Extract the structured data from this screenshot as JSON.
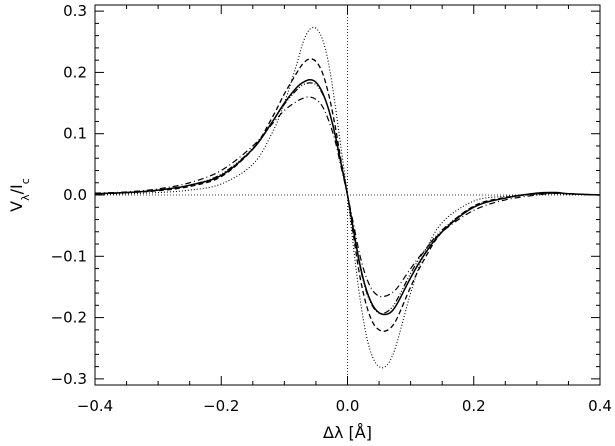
{
  "chart_data": {
    "type": "line",
    "title": "",
    "xlabel": "Δλ [Å]",
    "ylabel_main": "V",
    "ylabel_sub1": "λ",
    "ylabel_mid": "/I",
    "ylabel_sub2": "c",
    "xlim": [
      -0.4,
      0.4
    ],
    "ylim": [
      -0.31,
      0.31
    ],
    "xticks": [
      -0.4,
      -0.2,
      0.0,
      0.2,
      0.4
    ],
    "xtick_labels": [
      "−0.4",
      "−0.2",
      "0.0",
      "0.2",
      "0.4"
    ],
    "yticks": [
      -0.3,
      -0.2,
      -0.1,
      0.0,
      0.1,
      0.2,
      0.3
    ],
    "ytick_labels": [
      "−0.3",
      "−0.2",
      "−0.1",
      "0.0",
      "0.1",
      "0.2",
      "0.3"
    ],
    "grid": false,
    "legend": "none",
    "reference_lines": [
      {
        "orientation": "vertical",
        "value": 0.0,
        "style": "dotted"
      },
      {
        "orientation": "horizontal",
        "value": 0.0,
        "style": "dotted"
      }
    ],
    "x": [
      -0.4,
      -0.35,
      -0.3,
      -0.25,
      -0.2,
      -0.15,
      -0.12,
      -0.1,
      -0.08,
      -0.07,
      -0.06,
      -0.05,
      -0.04,
      -0.03,
      -0.02,
      -0.01,
      0.0,
      0.01,
      0.02,
      0.03,
      0.04,
      0.05,
      0.06,
      0.07,
      0.08,
      0.1,
      0.12,
      0.15,
      0.2,
      0.25,
      0.3,
      0.33,
      0.35,
      0.4
    ],
    "series": [
      {
        "style": "solid",
        "values": [
          0.002,
          0.004,
          0.008,
          0.016,
          0.032,
          0.075,
          0.118,
          0.15,
          0.176,
          0.184,
          0.188,
          0.184,
          0.168,
          0.14,
          0.1,
          0.05,
          0.0,
          -0.06,
          -0.115,
          -0.155,
          -0.18,
          -0.192,
          -0.195,
          -0.19,
          -0.175,
          -0.135,
          -0.1,
          -0.06,
          -0.02,
          -0.005,
          0.003,
          0.004,
          0.002,
          0.0
        ]
      },
      {
        "style": "dashed",
        "values": [
          0.002,
          0.004,
          0.007,
          0.014,
          0.03,
          0.075,
          0.125,
          0.165,
          0.2,
          0.215,
          0.222,
          0.218,
          0.2,
          0.165,
          0.115,
          0.055,
          0.0,
          -0.07,
          -0.135,
          -0.18,
          -0.208,
          -0.22,
          -0.222,
          -0.215,
          -0.198,
          -0.15,
          -0.108,
          -0.06,
          -0.018,
          -0.004,
          0.002,
          0.003,
          0.002,
          0.0
        ]
      },
      {
        "style": "dotted",
        "values": [
          0.001,
          0.002,
          0.004,
          0.008,
          0.018,
          0.05,
          0.1,
          0.15,
          0.215,
          0.25,
          0.27,
          0.272,
          0.255,
          0.215,
          0.15,
          0.075,
          0.0,
          -0.09,
          -0.17,
          -0.23,
          -0.265,
          -0.28,
          -0.28,
          -0.265,
          -0.235,
          -0.16,
          -0.1,
          -0.045,
          -0.01,
          -0.002,
          0.001,
          0.002,
          0.001,
          0.0
        ]
      },
      {
        "style": "dashdot",
        "values": [
          0.003,
          0.005,
          0.01,
          0.02,
          0.04,
          0.08,
          0.115,
          0.138,
          0.153,
          0.158,
          0.16,
          0.156,
          0.145,
          0.122,
          0.09,
          0.045,
          0.0,
          -0.05,
          -0.1,
          -0.135,
          -0.156,
          -0.165,
          -0.165,
          -0.16,
          -0.15,
          -0.12,
          -0.093,
          -0.06,
          -0.025,
          -0.008,
          0.0,
          0.003,
          0.002,
          0.0
        ]
      },
      {
        "style": "dashdot3",
        "values": [
          0.002,
          0.004,
          0.008,
          0.016,
          0.034,
          0.076,
          0.118,
          0.148,
          0.172,
          0.18,
          0.183,
          0.18,
          0.166,
          0.14,
          0.1,
          0.05,
          0.0,
          -0.062,
          -0.118,
          -0.158,
          -0.182,
          -0.193,
          -0.192,
          -0.184,
          -0.168,
          -0.128,
          -0.094,
          -0.057,
          -0.019,
          -0.005,
          0.002,
          0.003,
          0.002,
          0.0
        ]
      }
    ]
  }
}
